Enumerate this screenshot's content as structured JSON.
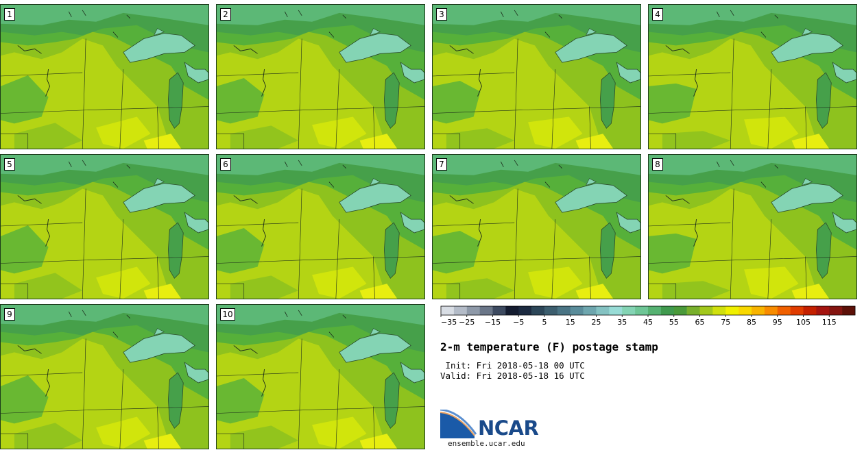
{
  "stamps": [
    "1",
    "2",
    "3",
    "4",
    "5",
    "6",
    "7",
    "8",
    "9",
    "10"
  ],
  "colorbar": {
    "colors": [
      "#d8dde4",
      "#b4bcc8",
      "#8e99a8",
      "#6a7688",
      "#3d4a60",
      "#141c30",
      "#1c2a40",
      "#2c4658",
      "#3c5e6e",
      "#4a7484",
      "#5a8c9a",
      "#6ea6ae",
      "#84c2c2",
      "#98dcd6",
      "#84d4b4",
      "#6ec696",
      "#56b272",
      "#409a4e",
      "#4a9a3a",
      "#78b02c",
      "#a2c81c",
      "#d0e00e",
      "#f0f000",
      "#f8d800",
      "#f8b400",
      "#f88c00",
      "#f06000",
      "#e03c00",
      "#c42000",
      "#a41410",
      "#841410",
      "#5c1008"
    ],
    "tick_labels": [
      "−35",
      "−25",
      "−15",
      "−5",
      "5",
      "15",
      "25",
      "35",
      "45",
      "55",
      "65",
      "75",
      "85",
      "95",
      "105",
      "115"
    ]
  },
  "title": "2-m temperature (F) postage stamp",
  "init_line": " Init: Fri 2018-05-18 00 UTC",
  "valid_line": "Valid: Fri 2018-05-18 16 UTC",
  "logo": {
    "name": "NCAR",
    "url": "ensemble.ucar.edu"
  }
}
